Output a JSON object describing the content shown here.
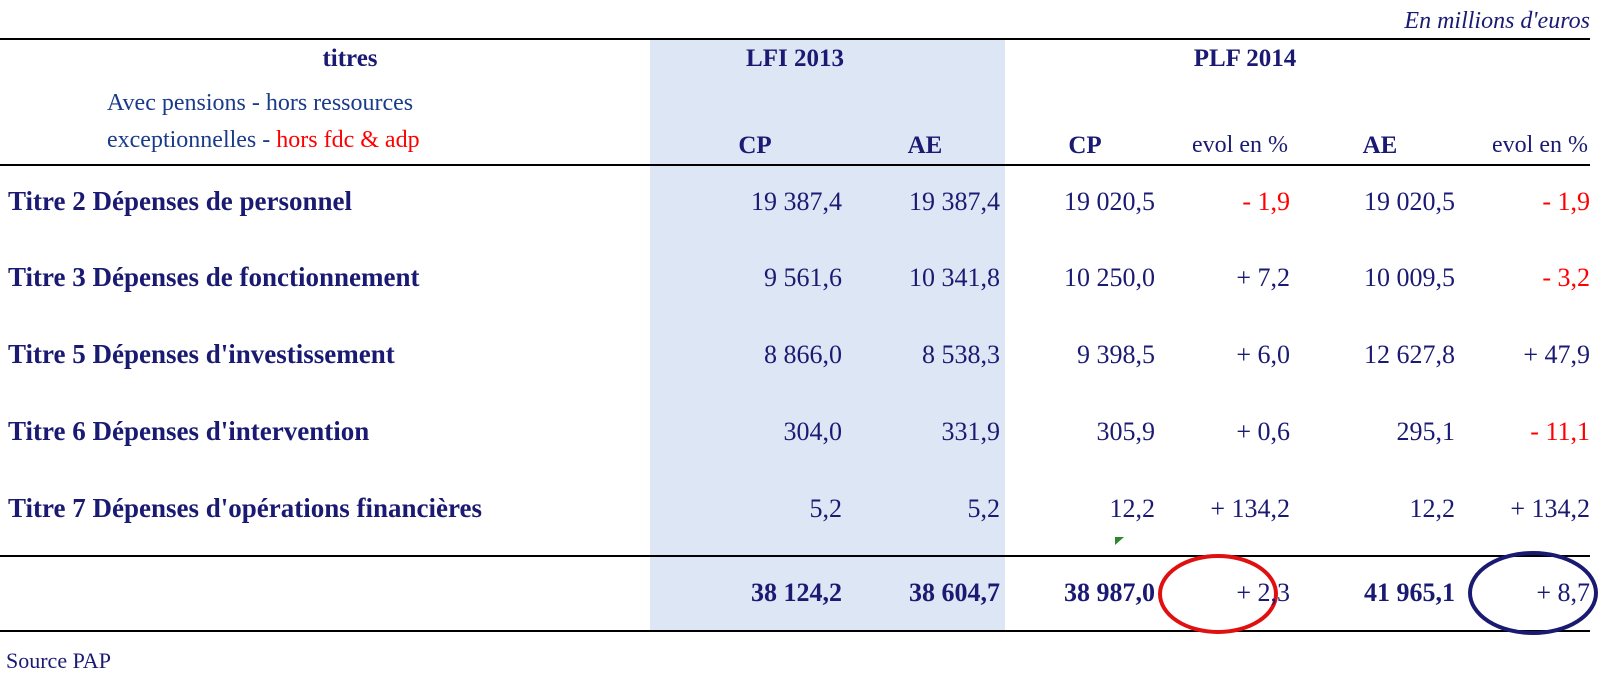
{
  "header": {
    "note": "En millions d'euros",
    "titles": "titres",
    "group1": "LFI 2013",
    "group2": "PLF 2014",
    "subtitle_line1": "Avec pensions - hors ressources",
    "subtitle_line2": "exceptionnelles -",
    "subtitle_highlight": "hors fdc & adp",
    "columns": [
      "CP",
      "AE",
      "CP",
      "evol en %",
      "AE",
      "evol en %"
    ]
  },
  "table": {
    "rows": [
      [
        "Titre 2 Dépenses de personnel",
        "19 387,4",
        "19 387,4",
        "19 020,5",
        "- 1,9",
        "19 020,5",
        "- 1,9"
      ],
      [
        "Titre 3 Dépenses de fonctionnement",
        "9 561,6",
        "10 341,8",
        "10 250,0",
        "+ 7,2",
        "10 009,5",
        "- 3,2"
      ],
      [
        "Titre 5 Dépenses d'investissement",
        "8 866,0",
        "8 538,3",
        "9 398,5",
        "+ 6,0",
        "12 627,8",
        "+ 47,9"
      ],
      [
        "Titre 6 Dépenses d'intervention",
        "304,0",
        "331,9",
        "305,9",
        "+ 0,6",
        "295,1",
        "- 11,1"
      ],
      [
        "Titre 7 Dépenses d'opérations financières",
        "5,2",
        "5,2",
        "12,2",
        "+ 134,2",
        "12,2",
        "+ 134,2"
      ]
    ],
    "total": [
      "38 124,2",
      "38 604,7",
      "38 987,0",
      "+ 2,3",
      "41 965,1",
      "+ 8,7"
    ]
  },
  "footer": {
    "source": "Source PAP"
  }
}
